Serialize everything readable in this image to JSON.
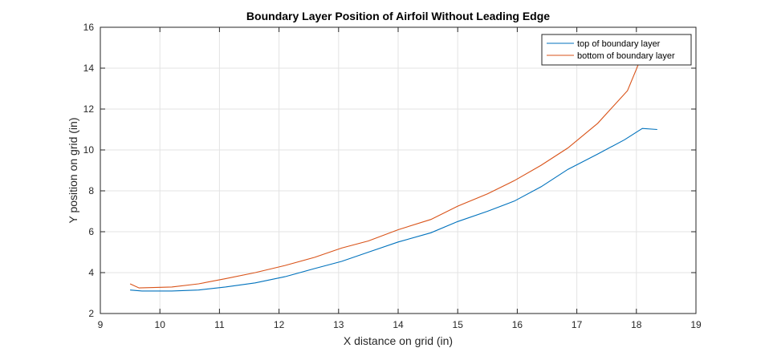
{
  "chart_data": {
    "type": "line",
    "title": "Boundary Layer Position of Airfoil Without Leading Edge",
    "xlabel": "X distance on grid (in)",
    "ylabel": "Y position on grid (in)",
    "xlim": [
      9,
      19
    ],
    "ylim": [
      2,
      16
    ],
    "xticks": [
      "9",
      "10",
      "11",
      "12",
      "13",
      "14",
      "15",
      "16",
      "17",
      "18",
      "19"
    ],
    "yticks": [
      "2",
      "4",
      "6",
      "8",
      "10",
      "12",
      "14",
      "16"
    ],
    "grid": true,
    "legend_position": "top-right",
    "series": [
      {
        "name": "top of boundary layer",
        "color": "#0072BD",
        "x": [
          9.5,
          9.7,
          10.2,
          10.65,
          11.1,
          11.6,
          12.1,
          12.6,
          13.05,
          13.5,
          14.0,
          14.55,
          15.0,
          15.5,
          15.95,
          16.4,
          16.85,
          17.35,
          17.8,
          18.1,
          18.35
        ],
        "y": [
          3.15,
          3.1,
          3.1,
          3.15,
          3.3,
          3.5,
          3.8,
          4.2,
          4.55,
          5.0,
          5.5,
          5.95,
          6.5,
          7.0,
          7.5,
          8.2,
          9.05,
          9.8,
          10.5,
          11.05,
          11.0
        ]
      },
      {
        "name": "bottom of boundary layer",
        "color": "#D95319",
        "x": [
          9.5,
          9.65,
          10.2,
          10.65,
          11.1,
          11.6,
          12.1,
          12.6,
          13.05,
          13.5,
          14.0,
          14.55,
          15.0,
          15.5,
          15.95,
          16.4,
          16.85,
          17.35,
          17.85,
          18.05,
          18.15
        ],
        "y": [
          3.45,
          3.25,
          3.3,
          3.45,
          3.7,
          4.0,
          4.35,
          4.75,
          5.2,
          5.55,
          6.1,
          6.6,
          7.25,
          7.85,
          8.5,
          9.25,
          10.1,
          11.3,
          12.9,
          14.3,
          15.1
        ]
      }
    ]
  }
}
